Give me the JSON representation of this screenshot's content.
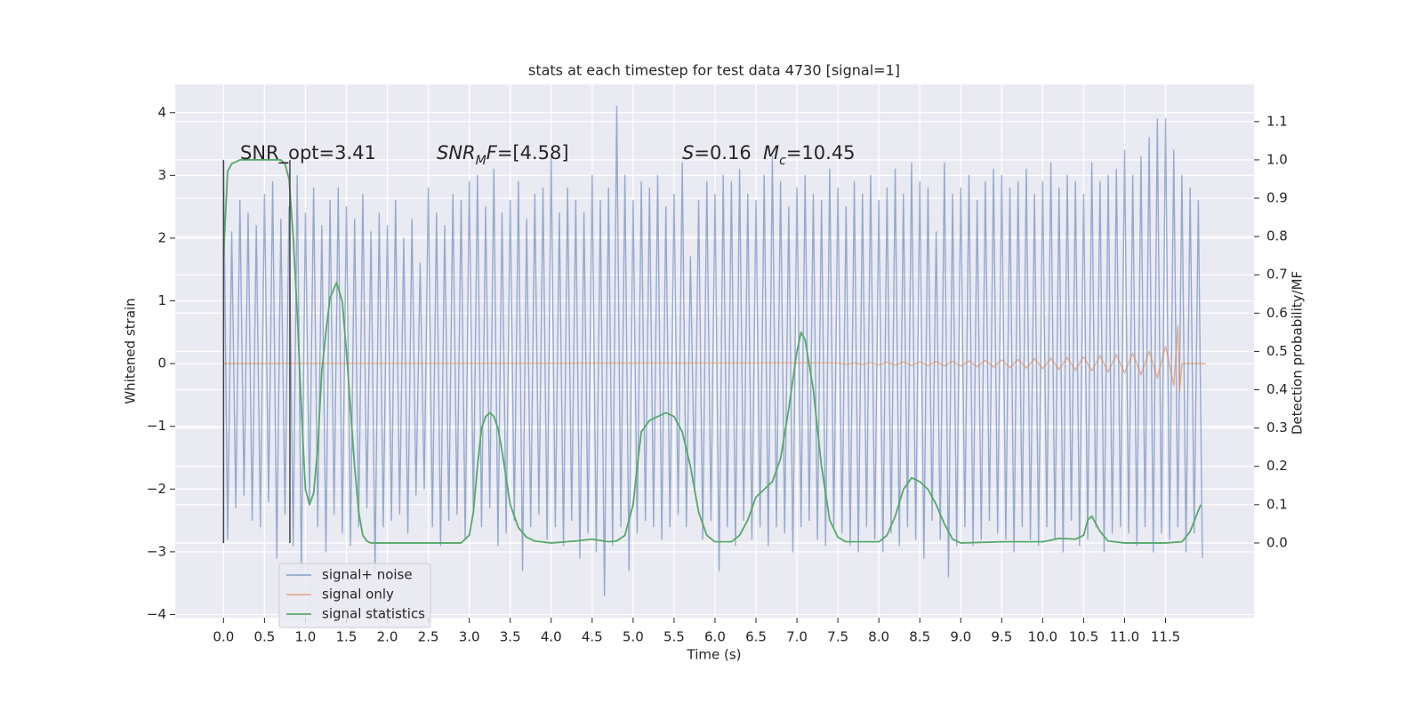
{
  "chart_data": {
    "type": "line",
    "title": "stats at each timestep for test data 4730 [signal=1]",
    "xlabel": "Time (s)",
    "ylabel": "Whitened strain",
    "y2label": "Detection probability/MF",
    "xlim": [
      -0.59,
      12.58
    ],
    "ylim": [
      -4.05,
      4.45
    ],
    "y2lim": [
      -0.195,
      1.197
    ],
    "xticks": [
      {
        "value": 0,
        "label": "0.0"
      },
      0.5,
      {
        "value": 1,
        "label": "1.0"
      },
      1.5,
      {
        "value": 2,
        "label": "2.0"
      },
      2.5,
      {
        "value": 3,
        "label": "3.0"
      },
      3.5,
      {
        "value": 4,
        "label": "4.0"
      },
      4.5,
      {
        "value": 5,
        "label": "5.0"
      },
      5.5,
      {
        "value": 6,
        "label": "6.0"
      },
      6.5,
      {
        "value": 7,
        "label": "7.0"
      },
      7.5,
      {
        "value": 8,
        "label": "8.0"
      },
      8.5,
      {
        "value": 9,
        "label": "9.0"
      },
      9.5,
      {
        "value": 10,
        "label": "10.0"
      },
      10.5,
      {
        "value": 11,
        "label": "11.0"
      },
      11.5
    ],
    "yticks": [
      {
        "value": -4,
        "label": "−4"
      },
      {
        "value": -3,
        "label": "−3"
      },
      {
        "value": -2,
        "label": "−2"
      },
      {
        "value": -1,
        "label": "−1"
      },
      0,
      1,
      2,
      3,
      4
    ],
    "y2ticks": [
      {
        "value": 0,
        "label": "0.0"
      },
      0.1,
      0.2,
      0.3,
      0.4,
      0.5,
      0.6,
      0.7,
      0.8,
      0.9,
      {
        "value": 1,
        "label": "1.0"
      },
      1.1
    ],
    "grid": true,
    "legend": "lower left",
    "annotations": [
      [
        {
          "text": "SNR_opt=3.41"
        }
      ],
      [
        {
          "text": "SNR",
          "style": "italic"
        },
        {
          "text": "M",
          "style": "italic-sub"
        },
        {
          "text": "F",
          "style": "italic"
        },
        {
          "text": "=[4.58]"
        }
      ],
      [
        {
          "text": "S",
          "style": "italic"
        },
        {
          "text": "=0.16"
        }
      ],
      [
        {
          "text": "M",
          "style": "italic"
        },
        {
          "text": "c",
          "style": "italic-sub"
        },
        {
          "text": "=10.45"
        }
      ]
    ],
    "vlines": {
      "x": [
        0,
        0.81
      ],
      "ymin": 0,
      "ymax": 1,
      "axis": "y2",
      "color": "#444444"
    },
    "series": [
      {
        "name": "signal+ noise",
        "color": "#4c72b0",
        "alpha": 0.55,
        "x": [
          0,
          0.05,
          0.1,
          0.15,
          0.2,
          0.25,
          0.3,
          0.35,
          0.4,
          0.45,
          0.5,
          0.55,
          0.6,
          0.65,
          0.7,
          0.75,
          0.8,
          0.85,
          0.9,
          0.95,
          1,
          1.05,
          1.1,
          1.15,
          1.2,
          1.25,
          1.3,
          1.35,
          1.4,
          1.45,
          1.5,
          1.55,
          1.6,
          1.65,
          1.7,
          1.75,
          1.8,
          1.85,
          1.9,
          1.95,
          2,
          2.05,
          2.1,
          2.15,
          2.2,
          2.25,
          2.3,
          2.35,
          2.4,
          2.45,
          2.5,
          2.55,
          2.6,
          2.65,
          2.7,
          2.75,
          2.8,
          2.85,
          2.9,
          2.95,
          3,
          3.05,
          3.1,
          3.15,
          3.2,
          3.25,
          3.3,
          3.35,
          3.4,
          3.45,
          3.5,
          3.55,
          3.6,
          3.65,
          3.7,
          3.75,
          3.8,
          3.85,
          3.9,
          3.95,
          4,
          4.05,
          4.1,
          4.15,
          4.2,
          4.25,
          4.3,
          4.35,
          4.4,
          4.45,
          4.5,
          4.55,
          4.6,
          4.65,
          4.7,
          4.75,
          4.8,
          4.85,
          4.9,
          4.95,
          5,
          5.05,
          5.1,
          5.15,
          5.2,
          5.25,
          5.3,
          5.35,
          5.4,
          5.45,
          5.5,
          5.55,
          5.6,
          5.65,
          5.7,
          5.75,
          5.8,
          5.85,
          5.9,
          5.95,
          6,
          6.05,
          6.1,
          6.15,
          6.2,
          6.25,
          6.3,
          6.35,
          6.4,
          6.45,
          6.5,
          6.55,
          6.6,
          6.65,
          6.7,
          6.75,
          6.8,
          6.85,
          6.9,
          6.95,
          7,
          7.05,
          7.1,
          7.15,
          7.2,
          7.25,
          7.3,
          7.35,
          7.4,
          7.45,
          7.5,
          7.55,
          7.6,
          7.65,
          7.7,
          7.75,
          7.8,
          7.85,
          7.9,
          7.95,
          8,
          8.05,
          8.1,
          8.15,
          8.2,
          8.25,
          8.3,
          8.35,
          8.4,
          8.45,
          8.5,
          8.55,
          8.6,
          8.65,
          8.7,
          8.75,
          8.8,
          8.85,
          8.9,
          8.95,
          9,
          9.05,
          9.1,
          9.15,
          9.2,
          9.25,
          9.3,
          9.35,
          9.4,
          9.45,
          9.5,
          9.55,
          9.6,
          9.65,
          9.7,
          9.75,
          9.8,
          9.85,
          9.9,
          9.95,
          10,
          10.05,
          10.1,
          10.15,
          10.2,
          10.25,
          10.3,
          10.35,
          10.4,
          10.45,
          10.5,
          10.55,
          10.6,
          10.65,
          10.7,
          10.75,
          10.8,
          10.85,
          10.9,
          10.95,
          11,
          11.05,
          11.1,
          11.15,
          11.2,
          11.25,
          11.3,
          11.35,
          11.4,
          11.45,
          11.5,
          11.55,
          11.6,
          11.65,
          11.7,
          11.75,
          11.8,
          11.85,
          11.9,
          11.95
        ],
        "values": [
          3.2,
          -2.8,
          2.1,
          -2.3,
          2.6,
          -2.1,
          2.4,
          -2.5,
          2.2,
          -2.6,
          2.7,
          -2.2,
          2.9,
          -3.1,
          2.3,
          -2.4,
          2.5,
          -2.9,
          3.0,
          -3.3,
          2.4,
          -2.2,
          2.8,
          -2.6,
          2.2,
          -3.0,
          2.6,
          -2.4,
          2.8,
          -2.7,
          2.5,
          -2.9,
          2.3,
          -2.6,
          2.7,
          -2.3,
          2.1,
          -3.3,
          2.4,
          -2.6,
          2.2,
          -2.5,
          2.6,
          -2.4,
          2.0,
          -2.7,
          2.3,
          -2.1,
          1.6,
          -2.0,
          2.8,
          -2.6,
          2.4,
          -2.9,
          2.2,
          -2.5,
          2.7,
          -2.4,
          2.6,
          -2.8,
          2.9,
          -2.4,
          3.0,
          -2.6,
          2.5,
          -2.3,
          3.1,
          -2.9,
          2.4,
          -2.7,
          2.6,
          -2.5,
          2.9,
          -3.3,
          2.3,
          -2.6,
          2.7,
          -2.4,
          2.8,
          -2.8,
          3.3,
          -2.6,
          2.4,
          -2.9,
          2.8,
          -2.5,
          2.6,
          -3.1,
          2.4,
          -2.7,
          3.0,
          -3.0,
          2.6,
          -3.7,
          2.8,
          -2.9,
          4.1,
          -2.6,
          3.0,
          -3.3,
          2.6,
          -2.7,
          2.9,
          -2.5,
          2.8,
          -2.6,
          3.0,
          -2.8,
          2.5,
          -2.6,
          2.7,
          -2.4,
          3.2,
          -2.6,
          1.7,
          -2.0,
          2.6,
          -2.8,
          2.9,
          -2.5,
          2.7,
          -3.3,
          3.0,
          -2.6,
          2.9,
          -2.9,
          3.1,
          -2.5,
          2.7,
          -2.8,
          2.6,
          -2.6,
          3.0,
          -2.9,
          3.3,
          -2.6,
          2.9,
          -2.7,
          2.5,
          -3.0,
          2.8,
          -2.6,
          3.0,
          -2.5,
          2.7,
          -2.8,
          2.6,
          -2.9,
          3.1,
          -2.6,
          2.8,
          -2.7,
          2.5,
          -2.9,
          2.9,
          -3.0,
          2.7,
          -2.6,
          3.0,
          -2.8,
          2.6,
          -3.0,
          2.8,
          -2.7,
          3.1,
          -2.9,
          2.7,
          -2.6,
          3.2,
          -2.8,
          2.9,
          -3.1,
          2.8,
          -2.5,
          2.1,
          -2.8,
          3.2,
          -3.4,
          2.7,
          -2.9,
          2.8,
          -2.6,
          3.0,
          -2.9,
          2.6,
          -2.8,
          2.9,
          -2.5,
          3.1,
          -2.7,
          3.0,
          -2.8,
          2.8,
          -3.0,
          2.9,
          -2.6,
          3.1,
          -2.8,
          2.7,
          -2.9,
          2.9,
          -2.6,
          3.2,
          -2.8,
          2.8,
          -3.0,
          3.0,
          -2.5,
          2.9,
          -2.9,
          2.7,
          -2.8,
          3.2,
          -2.6,
          2.9,
          -3.0,
          3.0,
          -2.7,
          3.1,
          -2.6,
          3.4,
          -2.7,
          3.0,
          -2.9,
          3.3,
          -2.6,
          3.6,
          -3.0,
          3.9,
          -2.7,
          3.9,
          -2.8,
          3.4,
          -2.6,
          3.0,
          -3.0,
          2.8,
          -2.7,
          2.6,
          -3.1
        ]
      },
      {
        "name": "signal only",
        "color": "#dd8452",
        "alpha": 0.6,
        "x": [
          0,
          7.5,
          7.6,
          7.7,
          7.8,
          7.9,
          8.0,
          8.1,
          8.2,
          8.3,
          8.4,
          8.5,
          8.6,
          8.7,
          8.8,
          8.9,
          9.0,
          9.1,
          9.2,
          9.3,
          9.4,
          9.5,
          9.6,
          9.7,
          9.8,
          9.9,
          10.0,
          10.1,
          10.2,
          10.3,
          10.4,
          10.5,
          10.6,
          10.7,
          10.8,
          10.9,
          11.0,
          11.1,
          11.2,
          11.3,
          11.4,
          11.5,
          11.6,
          11.65,
          11.67,
          11.7,
          11.99
        ],
        "values": [
          0,
          0.01,
          -0.01,
          0.012,
          -0.014,
          0.016,
          -0.02,
          0.02,
          -0.022,
          0.025,
          -0.027,
          0.03,
          -0.032,
          0.034,
          -0.036,
          0.038,
          -0.04,
          0.044,
          -0.048,
          0.052,
          -0.056,
          0.06,
          -0.064,
          0.068,
          -0.072,
          0.076,
          -0.08,
          0.086,
          -0.092,
          0.098,
          -0.104,
          0.11,
          -0.118,
          0.126,
          -0.134,
          0.142,
          -0.15,
          0.165,
          -0.18,
          0.2,
          -0.23,
          0.28,
          -0.35,
          0.6,
          -0.45,
          0,
          0
        ]
      },
      {
        "name": "signal statistics",
        "color": "#55a868",
        "axis": "y2",
        "x": [
          0,
          0.05,
          0.1,
          0.2,
          0.3,
          0.4,
          0.5,
          0.6,
          0.7,
          0.75,
          0.8,
          0.85,
          0.9,
          0.95,
          1.0,
          1.05,
          1.1,
          1.15,
          1.2,
          1.25,
          1.3,
          1.38,
          1.45,
          1.5,
          1.55,
          1.6,
          1.65,
          1.7,
          1.75,
          1.8,
          2.9,
          3.0,
          3.05,
          3.1,
          3.15,
          3.2,
          3.25,
          3.3,
          3.35,
          3.4,
          3.5,
          3.6,
          3.7,
          3.8,
          4.0,
          4.3,
          4.5,
          4.7,
          4.8,
          4.9,
          5.0,
          5.05,
          5.1,
          5.2,
          5.3,
          5.4,
          5.5,
          5.6,
          5.7,
          5.8,
          5.9,
          6.0,
          6.2,
          6.3,
          6.4,
          6.5,
          6.6,
          6.7,
          6.8,
          6.9,
          7.0,
          7.05,
          7.1,
          7.2,
          7.3,
          7.4,
          7.5,
          7.6,
          8.0,
          8.1,
          8.2,
          8.3,
          8.4,
          8.5,
          8.6,
          8.7,
          8.8,
          8.9,
          9.0,
          9.5,
          10.0,
          10.2,
          10.4,
          10.5,
          10.55,
          10.6,
          10.7,
          10.8,
          11.0,
          11.5,
          11.7,
          11.8,
          11.93
        ],
        "values": [
          0.75,
          0.97,
          0.99,
          1.0,
          1.0,
          1.0,
          1.0,
          1.0,
          1.0,
          0.99,
          0.95,
          0.8,
          0.6,
          0.35,
          0.14,
          0.1,
          0.13,
          0.25,
          0.45,
          0.55,
          0.64,
          0.68,
          0.63,
          0.5,
          0.35,
          0.2,
          0.08,
          0.02,
          0.005,
          0,
          0,
          0.02,
          0.08,
          0.2,
          0.3,
          0.33,
          0.34,
          0.33,
          0.3,
          0.24,
          0.1,
          0.04,
          0.015,
          0.005,
          0,
          0.005,
          0.01,
          0.003,
          0.005,
          0.02,
          0.1,
          0.2,
          0.29,
          0.32,
          0.33,
          0.34,
          0.33,
          0.29,
          0.2,
          0.08,
          0.02,
          0.003,
          0.003,
          0.02,
          0.06,
          0.12,
          0.14,
          0.16,
          0.22,
          0.35,
          0.5,
          0.55,
          0.53,
          0.4,
          0.2,
          0.06,
          0.015,
          0.003,
          0.003,
          0.02,
          0.07,
          0.14,
          0.17,
          0.16,
          0.14,
          0.1,
          0.05,
          0.01,
          0,
          0.003,
          0.003,
          0.012,
          0.01,
          0.02,
          0.06,
          0.07,
          0.03,
          0.005,
          0,
          0,
          0.003,
          0.03,
          0.1
        ]
      }
    ]
  }
}
